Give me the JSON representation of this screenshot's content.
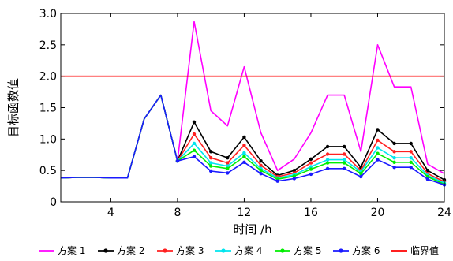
{
  "chart_data": {
    "type": "line",
    "xlabel": "时间 /h",
    "ylabel": "目标函数值",
    "xlim": [
      1,
      24
    ],
    "ylim": [
      0,
      3.0
    ],
    "xticks": [
      4,
      8,
      12,
      16,
      20,
      24
    ],
    "yticks": [
      0,
      0.5,
      1.0,
      1.5,
      2.0,
      2.5,
      3.0
    ],
    "ytick_labels": [
      "0",
      "0.5",
      "1.0",
      "1.5",
      "2.0",
      "2.5",
      "3.0"
    ],
    "grid": false,
    "legend_position": "bottom",
    "x": [
      1,
      2,
      3,
      4,
      5,
      6,
      7,
      8,
      9,
      10,
      11,
      12,
      13,
      14,
      15,
      16,
      17,
      18,
      19,
      20,
      21,
      22,
      23,
      24
    ],
    "series": [
      {
        "name": "方案 1",
        "color": "#ff00ff",
        "marker": "none",
        "values": [
          0.38,
          0.39,
          0.39,
          0.38,
          0.38,
          1.32,
          1.7,
          0.65,
          2.87,
          1.45,
          1.21,
          2.15,
          1.1,
          0.5,
          0.68,
          1.1,
          1.7,
          1.7,
          0.8,
          2.5,
          1.83,
          1.83,
          0.6,
          0.45
        ]
      },
      {
        "name": "方案 2",
        "color": "#000000",
        "marker": "dot",
        "values": [
          0.38,
          0.39,
          0.39,
          0.38,
          0.38,
          1.32,
          1.7,
          0.65,
          1.27,
          0.8,
          0.7,
          1.03,
          0.65,
          0.42,
          0.5,
          0.68,
          0.88,
          0.88,
          0.55,
          1.15,
          0.93,
          0.93,
          0.5,
          0.35
        ]
      },
      {
        "name": "方案 3",
        "color": "#ff2020",
        "marker": "dot",
        "values": [
          0.38,
          0.39,
          0.39,
          0.38,
          0.38,
          1.32,
          1.7,
          0.65,
          1.08,
          0.7,
          0.62,
          0.9,
          0.58,
          0.4,
          0.46,
          0.62,
          0.76,
          0.76,
          0.5,
          0.98,
          0.8,
          0.8,
          0.45,
          0.32
        ]
      },
      {
        "name": "方案 4",
        "color": "#00e5ee",
        "marker": "dot",
        "values": [
          0.38,
          0.39,
          0.39,
          0.38,
          0.38,
          1.32,
          1.7,
          0.65,
          0.93,
          0.62,
          0.57,
          0.78,
          0.53,
          0.38,
          0.43,
          0.56,
          0.67,
          0.67,
          0.48,
          0.86,
          0.7,
          0.7,
          0.42,
          0.3
        ]
      },
      {
        "name": "方案 5",
        "color": "#00ee00",
        "marker": "dot",
        "values": [
          0.38,
          0.39,
          0.39,
          0.38,
          0.38,
          1.32,
          1.7,
          0.65,
          0.82,
          0.57,
          0.53,
          0.72,
          0.5,
          0.36,
          0.41,
          0.52,
          0.62,
          0.62,
          0.45,
          0.77,
          0.63,
          0.63,
          0.4,
          0.28
        ]
      },
      {
        "name": "方案 6",
        "color": "#1a1aff",
        "marker": "dot",
        "values": [
          0.38,
          0.39,
          0.39,
          0.38,
          0.38,
          1.32,
          1.7,
          0.65,
          0.72,
          0.49,
          0.46,
          0.63,
          0.45,
          0.33,
          0.37,
          0.44,
          0.53,
          0.53,
          0.4,
          0.67,
          0.55,
          0.55,
          0.36,
          0.27
        ]
      }
    ],
    "threshold": {
      "name": "临界值",
      "value": 2.0,
      "color": "#ff0000"
    }
  }
}
